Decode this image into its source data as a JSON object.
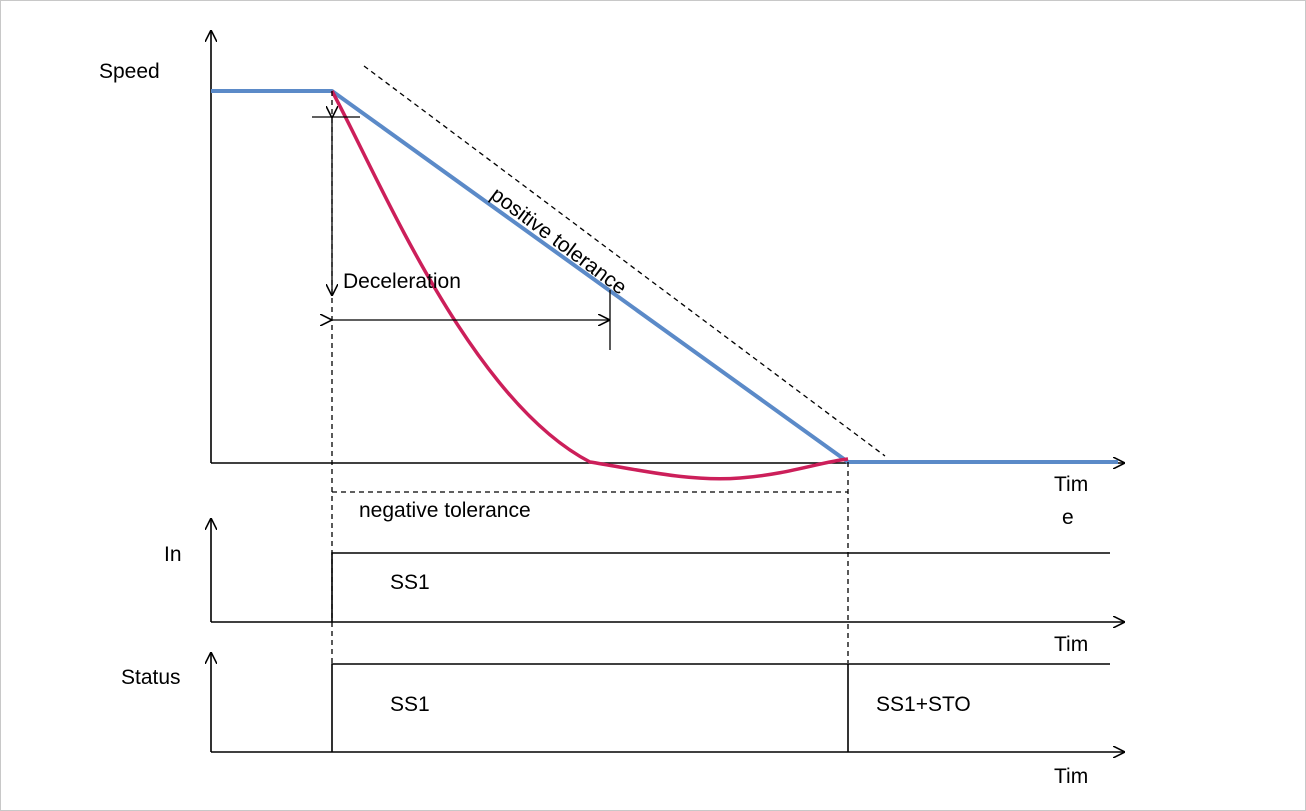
{
  "diagram": {
    "speed_graph": {
      "y_axis_label": "Speed",
      "x_axis_label_line1": "Tim",
      "x_axis_label_line2": "e",
      "positive_tolerance_label": "positive tolerance",
      "deceleration_label": "Deceleration",
      "negative_tolerance_label": "negative tolerance",
      "nominal_ramp_color": "#5b8ac8",
      "actual_speed_color": "#cc1f5a"
    },
    "in_graph": {
      "y_axis_label": "In",
      "x_axis_label": "Tim",
      "signal_label": "SS1"
    },
    "status_graph": {
      "y_axis_label": "Status",
      "x_axis_label": "Tim",
      "phase1_label": "SS1",
      "phase2_label": "SS1+STO"
    }
  }
}
